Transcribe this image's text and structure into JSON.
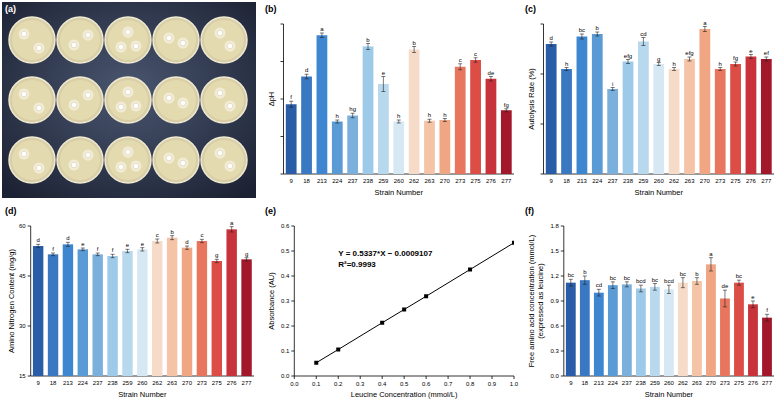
{
  "photo": {
    "label": "(a)"
  },
  "chart_data": [
    {
      "type": "bar",
      "panel": "(b)",
      "x_label": "Strain Number",
      "y_label": "ΔpH",
      "categories": [
        "9",
        "18",
        "213",
        "224",
        "237",
        "238",
        "259",
        "260",
        "262",
        "263",
        "270",
        "273",
        "275",
        "276",
        "277"
      ],
      "values": [
        0.93,
        1.3,
        1.85,
        0.7,
        0.78,
        1.7,
        1.2,
        0.7,
        1.66,
        0.71,
        0.72,
        1.43,
        1.52,
        1.27,
        0.85
      ],
      "errors": [
        0.04,
        0.03,
        0.03,
        0.02,
        0.03,
        0.04,
        0.1,
        0.02,
        0.04,
        0.02,
        0.02,
        0.04,
        0.03,
        0.03,
        0.02
      ],
      "significance": [
        "f",
        "d",
        "a",
        "h",
        "hg",
        "b",
        "e",
        "h",
        "b",
        "h",
        "h",
        "c",
        "c",
        "de",
        "fg"
      ],
      "colors": [
        "#2a5da8",
        "#3a78c2",
        "#3f86d0",
        "#5b9bd5",
        "#7bb0dd",
        "#9ccae8",
        "#b8d8ee",
        "#d6e8f4",
        "#f6dcc8",
        "#f5c4a6",
        "#f0a583",
        "#e8765e",
        "#dc4d45",
        "#c8323a",
        "#a3172a"
      ],
      "ylim": [
        0,
        2
      ],
      "yticks": [
        0,
        0.5,
        1,
        1.5,
        2
      ],
      "grid": false,
      "tick_labels": "x"
    },
    {
      "type": "bar",
      "panel": "(c)",
      "x_label": "Strain Number",
      "y_label": "Autolysis Rate (%)",
      "categories": [
        "9",
        "18",
        "213",
        "224",
        "237",
        "238",
        "259",
        "260",
        "262",
        "263",
        "270",
        "273",
        "275",
        "276",
        "277"
      ],
      "values": [
        26,
        21,
        27.5,
        28,
        17,
        22.5,
        26.5,
        22,
        21,
        23,
        29,
        21,
        22,
        23.5,
        23
      ],
      "errors": [
        0.4,
        0.3,
        0.5,
        0.4,
        0.3,
        0.4,
        0.8,
        0.3,
        0.3,
        0.4,
        0.5,
        0.3,
        0.4,
        0.4,
        0.4
      ],
      "significance": [
        "d",
        "h",
        "bc",
        "b",
        "i",
        "efg",
        "cd",
        "g",
        "h",
        "efg",
        "a",
        "h",
        "fg",
        "e",
        "ef"
      ],
      "colors": [
        "#2a5da8",
        "#3a78c2",
        "#3f86d0",
        "#5b9bd5",
        "#7bb0dd",
        "#9ccae8",
        "#b8d8ee",
        "#d6e8f4",
        "#f6dcc8",
        "#f5c4a6",
        "#f0a583",
        "#e8765e",
        "#dc4d45",
        "#c8323a",
        "#a3172a"
      ],
      "ylim": [
        0,
        30
      ],
      "yticks": [
        0,
        10,
        20,
        30
      ],
      "grid": false,
      "tick_labels": "x"
    },
    {
      "type": "bar",
      "panel": "(d)",
      "x_label": "Strain Number",
      "y_label": "Amino Nitrogen Content (mg/g)",
      "categories": [
        "9",
        "18",
        "213",
        "224",
        "237",
        "238",
        "259",
        "260",
        "262",
        "263",
        "270",
        "273",
        "275",
        "276",
        "277"
      ],
      "values": [
        54,
        51.5,
        54.5,
        53,
        51.5,
        51,
        52.5,
        53,
        55.5,
        56.5,
        53.5,
        55.5,
        49.5,
        59,
        50
      ],
      "errors": [
        0.5,
        0.4,
        0.6,
        0.4,
        0.4,
        0.5,
        0.5,
        0.5,
        0.6,
        0.6,
        0.5,
        0.5,
        0.5,
        0.8,
        0.5
      ],
      "significance": [
        "d",
        "f",
        "d",
        "e",
        "f",
        "f",
        "e",
        "e",
        "c",
        "b",
        "d",
        "c",
        "g",
        "a",
        "g"
      ],
      "colors": [
        "#2a5da8",
        "#3a78c2",
        "#3f86d0",
        "#5b9bd5",
        "#7bb0dd",
        "#9ccae8",
        "#b8d8ee",
        "#d6e8f4",
        "#f6dcc8",
        "#f5c4a6",
        "#f0a583",
        "#e8765e",
        "#dc4d45",
        "#c8323a",
        "#a3172a"
      ],
      "ylim": [
        15,
        60
      ],
      "yticks": [
        15,
        30,
        45,
        60
      ],
      "grid": false
    },
    {
      "type": "line",
      "panel": "(e)",
      "x_label": "Leucine Concentration (mmol/L)",
      "y_label": "Absorbance (AU)",
      "x": [
        0.1,
        0.2,
        0.4,
        0.5,
        0.6,
        0.8,
        1
      ],
      "values": [
        0.053,
        0.106,
        0.213,
        0.266,
        0.319,
        0.426,
        0.533
      ],
      "color": "#000000",
      "marker": "square",
      "line_style": "solid",
      "annotations": [
        "Y = 0.5337*X − 0.0009107",
        "R²=0.9993"
      ],
      "xlim": [
        0,
        1
      ],
      "xticks": [
        {
          "value": 0,
          "label": "0.0"
        },
        0.1,
        0.2,
        0.3,
        0.4,
        0.5,
        0.6,
        0.7,
        0.8,
        0.9,
        {
          "value": 1,
          "label": "1.0"
        }
      ],
      "ylim": [
        0,
        0.6
      ],
      "yticks": [
        {
          "value": 0,
          "label": "0.0"
        },
        0.1,
        0.2,
        0.3,
        0.4,
        0.5,
        0.6
      ],
      "grid": false
    },
    {
      "type": "bar",
      "panel": "(f)",
      "x_label": "Strain Number",
      "y_label": "Free amino acid concentration (mmol/L) (expressed as leucine)",
      "categories": [
        "9",
        "18",
        "213",
        "224",
        "237",
        "238",
        "259",
        "260",
        "262",
        "263",
        "270",
        "273",
        "275",
        "276",
        "277"
      ],
      "values": [
        1.12,
        1.15,
        1.0,
        1.09,
        1.1,
        1.05,
        1.07,
        1.04,
        1.12,
        1.14,
        1.34,
        0.93,
        1.12,
        0.86,
        0.7
      ],
      "errors": [
        0.04,
        0.05,
        0.04,
        0.04,
        0.03,
        0.04,
        0.04,
        0.05,
        0.06,
        0.04,
        0.08,
        0.1,
        0.03,
        0.04,
        0.04
      ],
      "significance": [
        "bc",
        "b",
        "cd",
        "bc",
        "bc",
        "bcd",
        "bc",
        "bcd",
        "bc",
        "b",
        "a",
        "de",
        "bc",
        "e",
        "f"
      ],
      "colors": [
        "#2a5da8",
        "#3a78c2",
        "#3f86d0",
        "#5b9bd5",
        "#7bb0dd",
        "#9ccae8",
        "#b8d8ee",
        "#d6e8f4",
        "#f6dcc8",
        "#f5c4a6",
        "#f0a583",
        "#e8765e",
        "#dc4d45",
        "#c8323a",
        "#a3172a"
      ],
      "ylim": [
        0,
        1.8
      ],
      "yticks": [
        {
          "value": 0,
          "label": "0.0"
        },
        0.3,
        0.6,
        0.9,
        1.2,
        1.5,
        1.8
      ],
      "grid": false
    }
  ]
}
